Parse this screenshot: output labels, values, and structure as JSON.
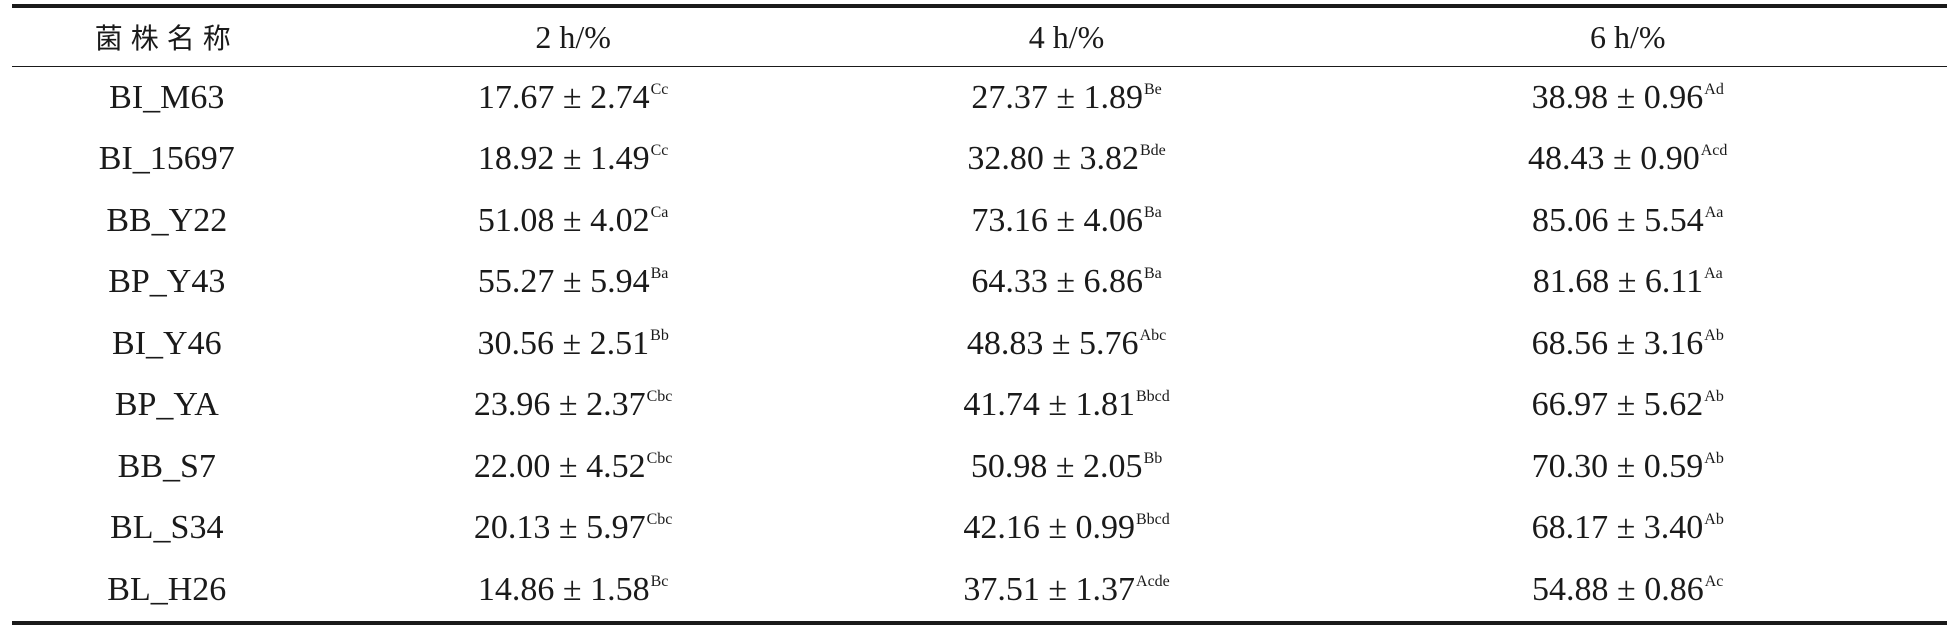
{
  "table": {
    "headers": [
      "菌株名称",
      "2 h/%",
      "4 h/%",
      "6 h/%"
    ],
    "rows": [
      {
        "strain": "BI_M63",
        "h2": "17.67 ± 2.74",
        "h2_sup": "Cc",
        "h4": "27.37 ± 1.89",
        "h4_sup": "Be",
        "h6": "38.98 ± 0.96",
        "h6_sup": "Ad"
      },
      {
        "strain": "BI_15697",
        "h2": "18.92 ± 1.49",
        "h2_sup": "Cc",
        "h4": "32.80 ± 3.82",
        "h4_sup": "Bde",
        "h6": "48.43 ± 0.90",
        "h6_sup": "Acd"
      },
      {
        "strain": "BB_Y22",
        "h2": "51.08 ± 4.02",
        "h2_sup": "Ca",
        "h4": "73.16 ± 4.06",
        "h4_sup": "Ba",
        "h6": "85.06 ± 5.54",
        "h6_sup": "Aa"
      },
      {
        "strain": "BP_Y43",
        "h2": "55.27 ± 5.94",
        "h2_sup": "Ba",
        "h4": "64.33 ± 6.86",
        "h4_sup": "Ba",
        "h6": "81.68 ± 6.11",
        "h6_sup": "Aa"
      },
      {
        "strain": "BI_Y46",
        "h2": "30.56 ± 2.51",
        "h2_sup": "Bb",
        "h4": "48.83 ± 5.76",
        "h4_sup": "Abc",
        "h6": "68.56 ± 3.16",
        "h6_sup": "Ab"
      },
      {
        "strain": "BP_YA",
        "h2": "23.96 ± 2.37",
        "h2_sup": "Cbc",
        "h4": "41.74 ± 1.81",
        "h4_sup": "Bbcd",
        "h6": "66.97 ± 5.62",
        "h6_sup": "Ab"
      },
      {
        "strain": "BB_S7",
        "h2": "22.00 ± 4.52",
        "h2_sup": "Cbc",
        "h4": "50.98 ± 2.05",
        "h4_sup": "Bb",
        "h6": "70.30 ± 0.59",
        "h6_sup": "Ab"
      },
      {
        "strain": "BL_S34",
        "h2": "20.13 ± 5.97",
        "h2_sup": "Cbc",
        "h4": "42.16 ± 0.99",
        "h4_sup": "Bbcd",
        "h6": "68.17 ± 3.40",
        "h6_sup": "Ab"
      },
      {
        "strain": "BL_H26",
        "h2": "14.86 ± 1.58",
        "h2_sup": "Bc",
        "h4": "37.51 ± 1.37",
        "h4_sup": "Acde",
        "h6": "54.88 ± 0.86",
        "h6_sup": "Ac"
      }
    ]
  }
}
